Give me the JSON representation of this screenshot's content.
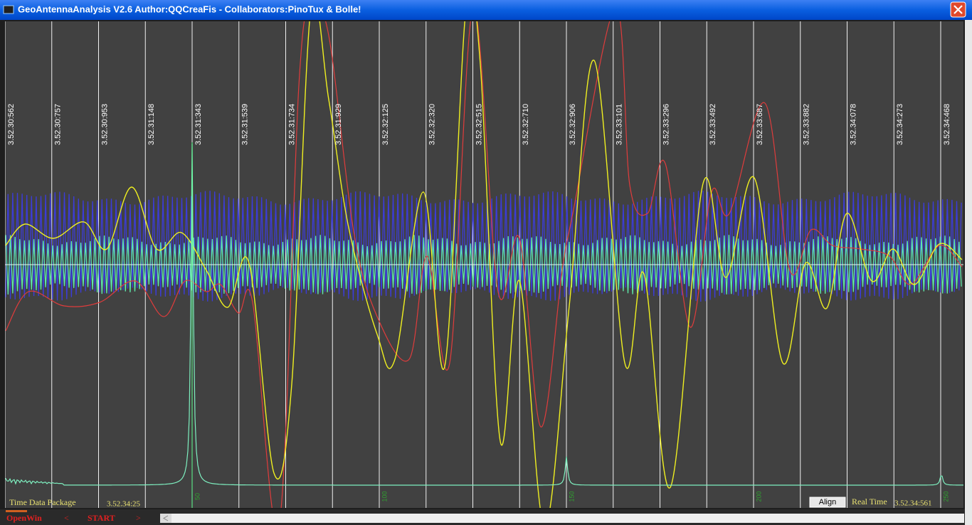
{
  "window": {
    "title": "GeoAntennaAnalysis V2.6 Author:QQCreaFis - Collaborators:PinoTux & Bolle!"
  },
  "timestamps": [
    "3.52.30:562",
    "3.52.30:757",
    "3.52.30:953",
    "3.52.31:148",
    "3.52.31:343",
    "3.52.31:539",
    "3.52.31:734",
    "3.52.31:929",
    "3.52.32:125",
    "3.52.32:320",
    "3.52.32:515",
    "3.52.32:710",
    "3.52.32:906",
    "3.52.33:101",
    "3.52.33:296",
    "3.52.33:492",
    "3.52.33:687",
    "3.52.33:882",
    "3.52.34:078",
    "3.52.34:273",
    "3.52.34:468"
  ],
  "sample_labels": [
    "50",
    "100",
    "150",
    "200",
    "250"
  ],
  "status": {
    "left_label": "Time Data Package",
    "left_time": "3.52.34:25",
    "align_button": "Align",
    "right_label": "Real Time",
    "right_time": "3.52.34:561"
  },
  "toolbar": {
    "open": "OpenWin",
    "prev": "<",
    "start": "START",
    "next": ">"
  }
}
